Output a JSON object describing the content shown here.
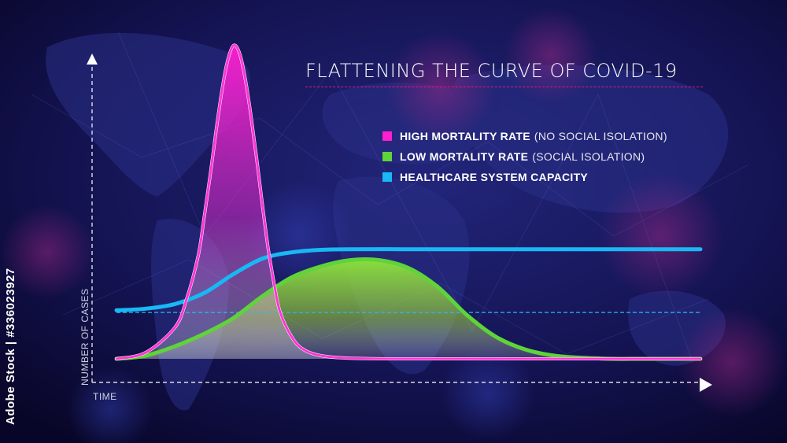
{
  "chart_data": {
    "type": "line",
    "title": "FLATTENING THE CURVE OF COVID-19",
    "xlabel": "TIME",
    "ylabel": "NUMBER OF CASES",
    "xlim": [
      0,
      100
    ],
    "ylim": [
      0,
      100
    ],
    "reference_line": {
      "y": 14.8
    },
    "series": [
      {
        "name": "HIGH MORTALITY RATE",
        "note": "(NO SOCIAL ISOLATION)",
        "color": "#ff1fd0",
        "x": [
          0,
          5,
          10,
          12,
          14,
          15,
          16,
          17,
          18,
          19,
          20,
          21,
          22,
          23,
          24,
          25,
          26,
          27,
          28,
          30,
          32,
          35,
          40,
          50,
          60,
          70,
          80,
          90,
          100
        ],
        "y": [
          0,
          2,
          10,
          19,
          33,
          45,
          58,
          72,
          85,
          95,
          100,
          98,
          90,
          78,
          64,
          49,
          35,
          24,
          15,
          7,
          3,
          1,
          0.2,
          0,
          0,
          0,
          0,
          0,
          0
        ]
      },
      {
        "name": "LOW MORTALITY RATE",
        "note": "(SOCIAL ISOLATION)",
        "color": "#5fd33a",
        "x": [
          0,
          5,
          10,
          15,
          20,
          25,
          30,
          35,
          40,
          45,
          50,
          55,
          60,
          65,
          70,
          75,
          80,
          85,
          90,
          95,
          100
        ],
        "y": [
          0,
          1,
          4,
          8,
          13,
          20,
          26,
          29.5,
          31.5,
          31.5,
          29,
          23,
          14,
          7,
          3,
          1,
          0.3,
          0,
          0,
          0,
          0
        ]
      },
      {
        "name": "HEALTHCARE SYSTEM CAPACITY",
        "note": "",
        "color": "#19b8f5",
        "x": [
          0,
          5,
          10,
          15,
          20,
          25,
          30,
          35,
          40,
          50,
          60,
          70,
          80,
          90,
          100
        ],
        "y": [
          15.5,
          16,
          17.5,
          21,
          27,
          32,
          34,
          34.8,
          35,
          35,
          35,
          35,
          35,
          35,
          35
        ]
      }
    ]
  },
  "side_text": "Adobe Stock | #336023927",
  "colors": {
    "background": "#0b0a3a",
    "axis": "#ffffff",
    "title_rule": "#e0187f",
    "reference_line": "#2ab8f0"
  }
}
